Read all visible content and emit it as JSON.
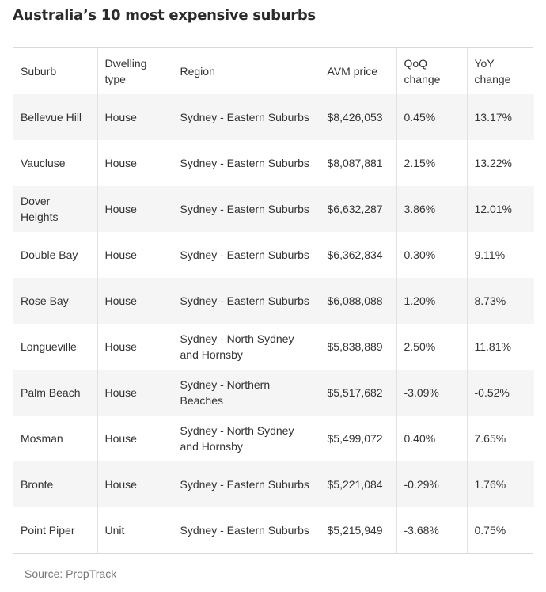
{
  "title": "Australia’s 10 most expensive suburbs",
  "table": {
    "headers": [
      "Suburb",
      "Dwelling type",
      "Region",
      "AVM price",
      "QoQ change",
      "YoY change"
    ],
    "rows": [
      [
        "Bellevue Hill",
        "House",
        "Sydney - Eastern Suburbs",
        "$8,426,053",
        "0.45%",
        "13.17%"
      ],
      [
        "Vaucluse",
        "House",
        "Sydney - Eastern Suburbs",
        "$8,087,881",
        "2.15%",
        "13.22%"
      ],
      [
        "Dover Heights",
        "House",
        "Sydney - Eastern Suburbs",
        "$6,632,287",
        "3.86%",
        "12.01%"
      ],
      [
        "Double Bay",
        "House",
        "Sydney - Eastern Suburbs",
        "$6,362,834",
        "0.30%",
        "9.11%"
      ],
      [
        "Rose Bay",
        "House",
        "Sydney - Eastern Suburbs",
        "$6,088,088",
        "1.20%",
        "8.73%"
      ],
      [
        "Longueville",
        "House",
        "Sydney - North Sydney and Hornsby",
        "$5,838,889",
        "2.50%",
        "11.81%"
      ],
      [
        "Palm Beach",
        "House",
        "Sydney - Northern Beaches",
        "$5,517,682",
        "-3.09%",
        "-0.52%"
      ],
      [
        "Mosman",
        "House",
        "Sydney - North Sydney and Hornsby",
        "$5,499,072",
        "0.40%",
        "7.65%"
      ],
      [
        "Bronte",
        "House",
        "Sydney - Eastern Suburbs",
        "$5,221,084",
        "-0.29%",
        "1.76%"
      ],
      [
        "Point Piper",
        "Unit",
        "Sydney - Eastern Suburbs",
        "$5,215,949",
        "-3.68%",
        "0.75%"
      ]
    ]
  },
  "source": "Source: PropTrack"
}
